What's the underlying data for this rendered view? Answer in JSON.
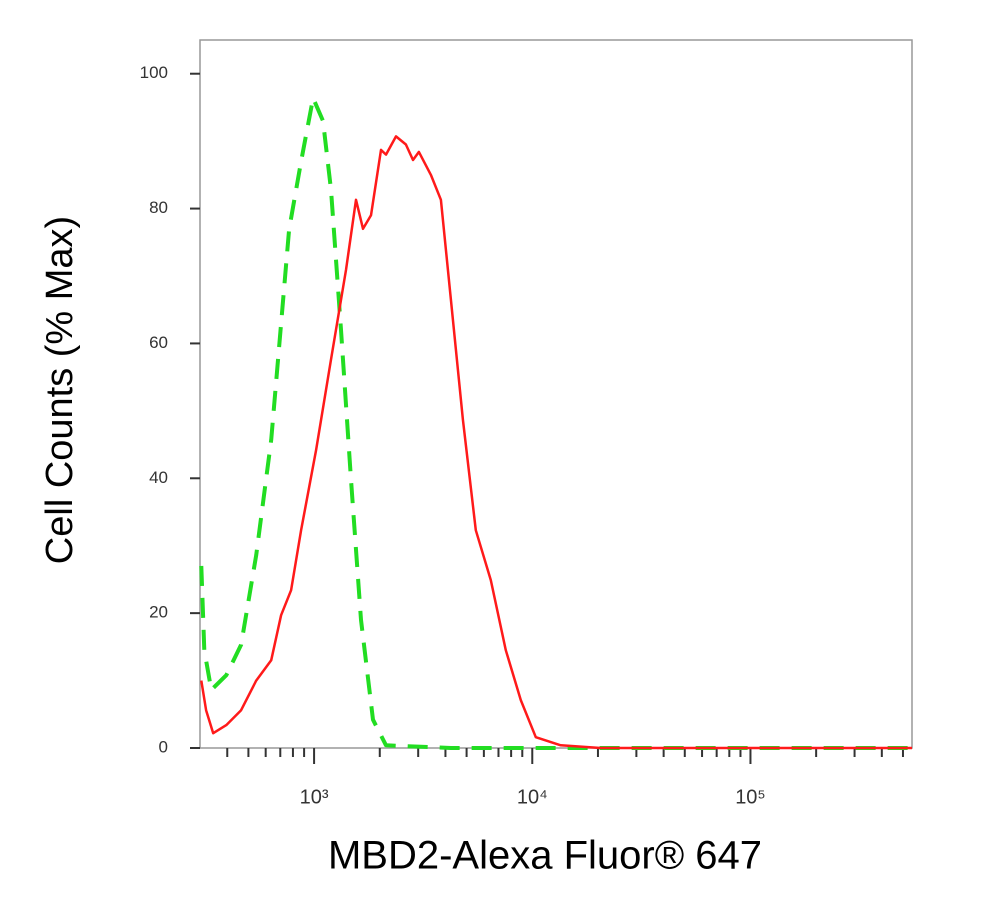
{
  "chart_data": {
    "type": "line",
    "xlabel": "MBD2-Alexa Fluor® 647",
    "ylabel": "Cell Counts (% Max)",
    "xscale": "log",
    "xlim": [
      300,
      550000
    ],
    "ylim": [
      0,
      105
    ],
    "xticks": [
      {
        "value": 1000,
        "label": "10³"
      },
      {
        "value": 10000,
        "label": "10⁴"
      },
      {
        "value": 100000,
        "label": "10⁵"
      }
    ],
    "xminorticks": [
      400,
      500,
      600,
      700,
      800,
      900,
      2000,
      3000,
      4000,
      5000,
      6000,
      7000,
      8000,
      9000,
      20000,
      30000,
      40000,
      50000,
      60000,
      70000,
      80000,
      90000,
      200000,
      300000,
      400000,
      500000
    ],
    "yticks": [
      0,
      20,
      40,
      60,
      80,
      100
    ],
    "series": [
      {
        "color": "#22dd22",
        "dash": true,
        "x": [
          304,
          314,
          338,
          396,
          463,
          543,
          636,
          768,
          872,
          990,
          1099,
          1196,
          1329,
          1477,
          1641,
          1862,
          2136,
          4236,
          20560,
          550000
        ],
        "values": [
          27,
          14.5,
          8.6,
          10.8,
          15.3,
          28.6,
          45.7,
          76.9,
          87,
          96.4,
          93,
          82.8,
          62,
          39.8,
          19,
          4.2,
          0.4,
          0,
          0,
          0
        ]
      },
      {
        "color": "#ff1a1a",
        "dash": false,
        "x": [
          304,
          320,
          345,
          396,
          463,
          543,
          636,
          706,
          785,
          872,
          1021,
          1196,
          1401,
          1557,
          1676,
          1824,
          2026,
          2136,
          2373,
          2636,
          2839,
          3024,
          3432,
          3811,
          4236,
          4808,
          5511,
          6452,
          7564,
          8855,
          10380,
          13500,
          20560,
          550000
        ],
        "values": [
          10,
          5.6,
          2.2,
          3.4,
          5.6,
          10,
          13,
          19.7,
          23.4,
          32.3,
          44.2,
          57.6,
          70.9,
          81.3,
          77,
          79,
          88.7,
          88,
          90.7,
          89.5,
          87.2,
          88.4,
          85,
          81.3,
          66.5,
          48.7,
          32.3,
          24.9,
          14.5,
          7.1,
          1.6,
          0.4,
          0,
          0
        ]
      }
    ]
  }
}
